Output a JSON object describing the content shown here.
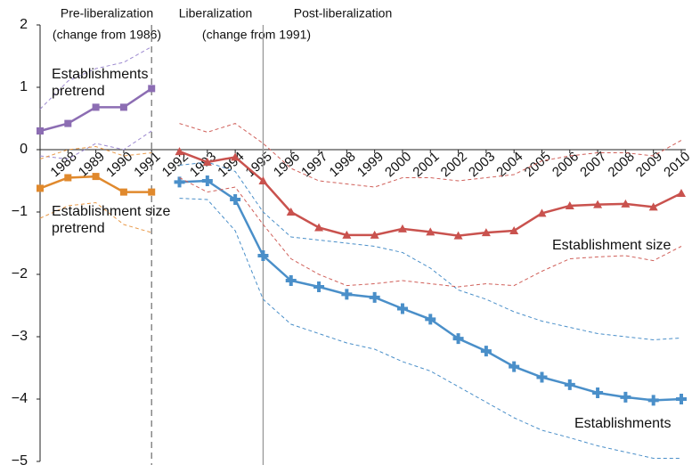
{
  "chart_data": {
    "type": "line",
    "x": [
      1987,
      1988,
      1989,
      1990,
      1991,
      1992,
      1993,
      1994,
      1995,
      1996,
      1997,
      1998,
      1999,
      2000,
      2001,
      2002,
      2003,
      2004,
      2005,
      2006,
      2007,
      2008,
      2009,
      2010
    ],
    "xlim": [
      1987,
      2010
    ],
    "xticks": [
      1988,
      1989,
      1990,
      1991,
      1992,
      1993,
      1994,
      1995,
      1996,
      1997,
      1998,
      1999,
      2000,
      2001,
      2002,
      2003,
      2004,
      2005,
      2006,
      2007,
      2008,
      2009,
      2010
    ],
    "ylim": [
      -5,
      2
    ],
    "yticks": [
      {
        "value": -5,
        "label": "−5"
      },
      {
        "value": -4,
        "label": "−4"
      },
      {
        "value": -3,
        "label": "−3"
      },
      {
        "value": -2,
        "label": "−2"
      },
      {
        "value": -1,
        "label": "−1"
      },
      0,
      1,
      2
    ],
    "vlines": [
      {
        "x": 1991,
        "style": "dashed"
      },
      {
        "x": 1995,
        "style": "solid"
      }
    ],
    "annotations": [
      "Pre-liberalization",
      "(change from 1986)",
      "Liberalization",
      "(change from 1991)",
      "Post-liberalization"
    ],
    "series": [
      {
        "name": "Establishments pretrend",
        "color": "#8c6db3",
        "bound_color": "#9d8ad0",
        "marker": "square",
        "values": [
          0.3,
          0.42,
          0.68,
          0.68,
          0.98,
          null,
          null,
          null,
          null,
          null,
          null,
          null,
          null,
          null,
          null,
          null,
          null,
          null,
          null,
          null,
          null,
          null,
          null,
          null
        ],
        "upper": [
          0.65,
          1.1,
          1.3,
          1.4,
          1.65,
          null,
          null,
          null,
          null,
          null,
          null,
          null,
          null,
          null,
          null,
          null,
          null,
          null,
          null,
          null,
          null,
          null,
          null,
          null
        ],
        "lower": [
          -0.1,
          -0.15,
          0.1,
          0.0,
          0.3,
          null,
          null,
          null,
          null,
          null,
          null,
          null,
          null,
          null,
          null,
          null,
          null,
          null,
          null,
          null,
          null,
          null,
          null,
          null
        ]
      },
      {
        "name": "Establishment size pretrend",
        "color": "#e0892d",
        "bound_color": "#e99a4a",
        "marker": "square",
        "values": [
          -0.62,
          -0.45,
          -0.43,
          -0.68,
          -0.68,
          null,
          null,
          null,
          null,
          null,
          null,
          null,
          null,
          null,
          null,
          null,
          null,
          null,
          null,
          null,
          null,
          null,
          null,
          null
        ],
        "upper": [
          -0.15,
          0.0,
          0.05,
          -0.1,
          -0.05,
          null,
          null,
          null,
          null,
          null,
          null,
          null,
          null,
          null,
          null,
          null,
          null,
          null,
          null,
          null,
          null,
          null,
          null,
          null
        ],
        "lower": [
          -1.1,
          -0.9,
          -0.85,
          -1.2,
          -1.33,
          null,
          null,
          null,
          null,
          null,
          null,
          null,
          null,
          null,
          null,
          null,
          null,
          null,
          null,
          null,
          null,
          null,
          null,
          null
        ]
      },
      {
        "name": "Establishments",
        "color": "#4a8fc9",
        "bound_color": "#4a8fc9",
        "marker": "plus",
        "values": [
          null,
          null,
          null,
          null,
          null,
          -0.52,
          -0.5,
          -0.8,
          -1.7,
          -2.1,
          -2.2,
          -2.32,
          -2.37,
          -2.55,
          -2.72,
          -3.03,
          -3.23,
          -3.48,
          -3.65,
          -3.77,
          -3.9,
          -3.97,
          -4.02,
          -4.0
        ],
        "upper": [
          null,
          null,
          null,
          null,
          null,
          -0.25,
          -0.2,
          -0.35,
          -1.0,
          -1.4,
          -1.45,
          -1.5,
          -1.55,
          -1.65,
          -1.9,
          -2.25,
          -2.4,
          -2.6,
          -2.75,
          -2.85,
          -2.95,
          -3.0,
          -3.05,
          -3.02
        ],
        "lower": [
          null,
          null,
          null,
          null,
          null,
          -0.78,
          -0.8,
          -1.3,
          -2.4,
          -2.8,
          -2.95,
          -3.1,
          -3.2,
          -3.4,
          -3.55,
          -3.8,
          -4.05,
          -4.3,
          -4.5,
          -4.62,
          -4.75,
          -4.85,
          -4.95,
          -4.95
        ]
      },
      {
        "name": "Establishment size",
        "color": "#c9524e",
        "bound_color": "#d0605a",
        "marker": "triangle",
        "values": [
          null,
          null,
          null,
          null,
          null,
          -0.03,
          -0.2,
          -0.12,
          -0.5,
          -1.0,
          -1.25,
          -1.37,
          -1.37,
          -1.27,
          -1.32,
          -1.38,
          -1.33,
          -1.3,
          -1.02,
          -0.9,
          -0.88,
          -0.87,
          -0.92,
          -0.7
        ],
        "upper": [
          null,
          null,
          null,
          null,
          null,
          0.42,
          0.28,
          0.42,
          0.1,
          -0.3,
          -0.5,
          -0.55,
          -0.6,
          -0.45,
          -0.45,
          -0.5,
          -0.45,
          -0.4,
          -0.18,
          -0.1,
          -0.05,
          -0.05,
          -0.1,
          0.15
        ],
        "lower": [
          null,
          null,
          null,
          null,
          null,
          -0.45,
          -0.68,
          -0.6,
          -1.2,
          -1.75,
          -2.0,
          -2.18,
          -2.15,
          -2.1,
          -2.15,
          -2.2,
          -2.15,
          -2.18,
          -1.95,
          -1.75,
          -1.72,
          -1.7,
          -1.78,
          -1.55
        ]
      }
    ]
  }
}
